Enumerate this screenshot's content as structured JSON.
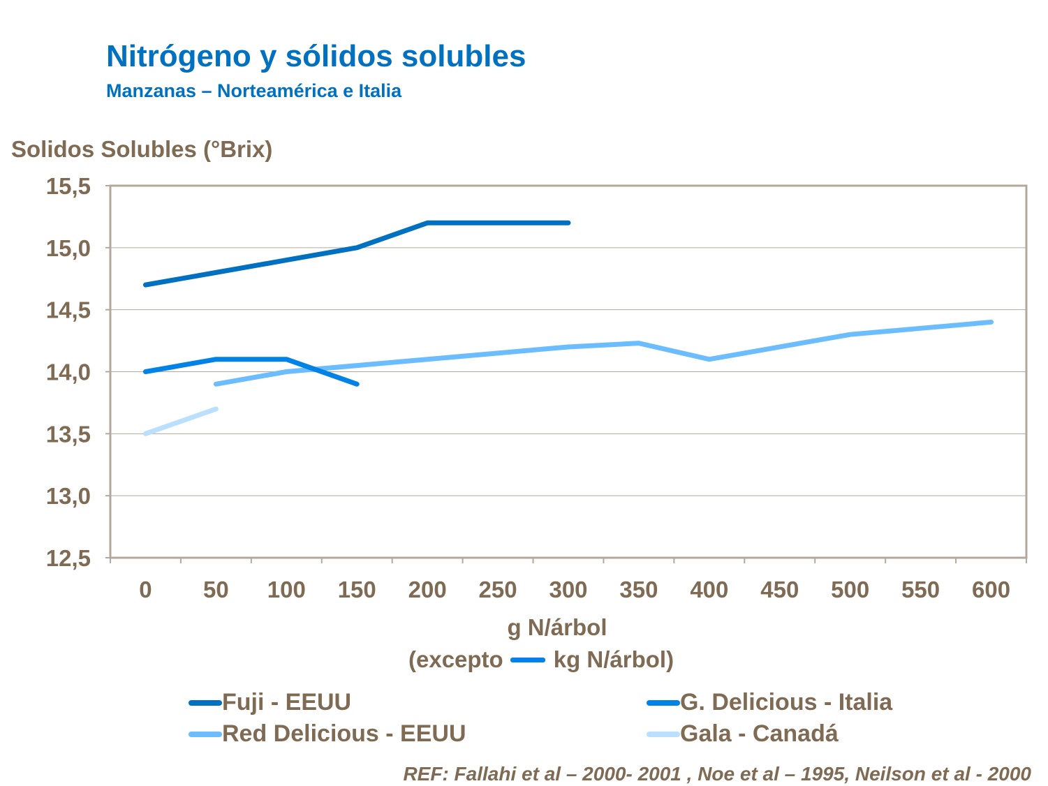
{
  "title": "Nitrógeno y sólidos solubles",
  "subtitle": "Manzanas – Norteamérica  e Italia",
  "reference": "REF: Fallahi et al – 2000- 2001 , Noe et al – 1995, Neilson et al - 2000",
  "chart_data": {
    "type": "line",
    "ylabel": "Solidos Solubles (°Brix)",
    "xlabel": "g N/árbol",
    "xlabel_note_prefix": "(excepto",
    "xlabel_note_suffix": "kg N/árbol)",
    "xlabel_note_color": "#0082E6",
    "categories": [
      "0",
      "50",
      "100",
      "150",
      "200",
      "250",
      "300",
      "350",
      "400",
      "450",
      "500",
      "550",
      "600"
    ],
    "yticks": [
      "12,5",
      "13,0",
      "13,5",
      "14,0",
      "14,5",
      "15,0",
      "15,5"
    ],
    "ylim": [
      12.5,
      15.5
    ],
    "grid": true,
    "legend_placement": "bottom",
    "series": [
      {
        "name": "Fuji - EEUU",
        "color": "#0070C0",
        "values": [
          14.7,
          14.8,
          14.9,
          15.0,
          15.2,
          15.2,
          15.2,
          null,
          null,
          null,
          null,
          null,
          null
        ]
      },
      {
        "name": "G. Delicious - Italia",
        "color": "#0082E6",
        "values": [
          14.0,
          14.1,
          14.1,
          13.9,
          null,
          null,
          null,
          null,
          null,
          null,
          null,
          null,
          null
        ]
      },
      {
        "name": "Red Delicious - EEUU",
        "color": "#6BBDFF",
        "values": [
          null,
          13.9,
          14.0,
          14.05,
          14.1,
          14.15,
          14.2,
          14.23,
          14.1,
          14.2,
          14.3,
          14.35,
          14.4
        ]
      },
      {
        "name": "Gala - Canadá",
        "color": "#BBE0FF",
        "values": [
          13.5,
          13.7,
          null,
          null,
          null,
          null,
          null,
          null,
          null,
          null,
          null,
          null,
          null
        ]
      }
    ]
  }
}
